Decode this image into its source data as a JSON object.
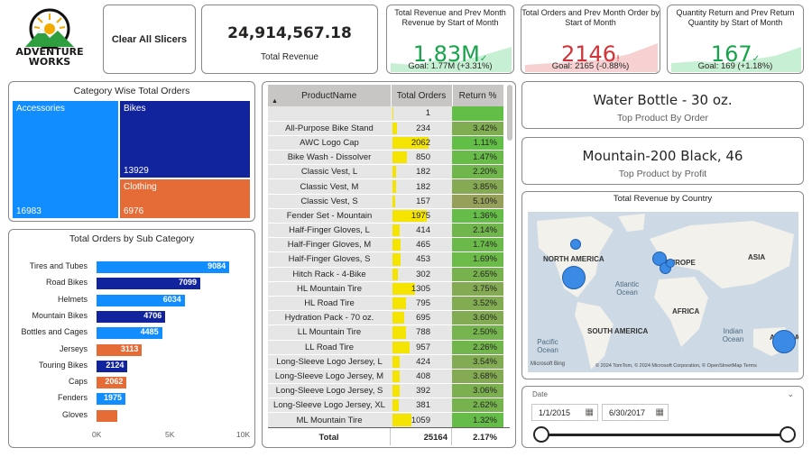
{
  "brand": {
    "logo_line1": "ADVENTURE",
    "logo_line2": "WORKS"
  },
  "clear_button": {
    "label": "Clear All Slicers"
  },
  "total_revenue": {
    "value": "24,914,567.18",
    "label": "Total Revenue"
  },
  "kpis": [
    {
      "title": "Total Revenue and Prev Month Revenue by Start of Month",
      "value": "1.83M",
      "goal": "Goal: 1.77M (+3.31%)",
      "status": "good",
      "color": "#17a34a"
    },
    {
      "title": "Total Orders and Prev Month Order by Start of Month",
      "value": "2146",
      "goal": "Goal: 2165 (-0.88%)",
      "status": "bad",
      "color": "#d13438"
    },
    {
      "title": "Quantity Return and Prev Return Quantity by Start of Month",
      "value": "167",
      "goal": "Goal: 169 (+1.18%)",
      "status": "good",
      "color": "#17a34a"
    }
  ],
  "category_orders": {
    "title": "Category Wise Total Orders",
    "cells": [
      {
        "name": "Accessories",
        "value": "16983",
        "color": "#118dff"
      },
      {
        "name": "Bikes",
        "value": "13929",
        "color": "#12239e"
      },
      {
        "name": "Clothing",
        "value": "6976",
        "color": "#e66c37"
      }
    ]
  },
  "subcategory_orders": {
    "title": "Total Orders by Sub Category",
    "axis_ticks": [
      "0K",
      "5K",
      "10K"
    ],
    "items": [
      {
        "label": "Tires and Tubes",
        "value": 9084,
        "display": "9084",
        "color": "#118dff"
      },
      {
        "label": "Road Bikes",
        "value": 7099,
        "display": "7099",
        "color": "#12239e"
      },
      {
        "label": "Helmets",
        "value": 6034,
        "display": "6034",
        "color": "#118dff"
      },
      {
        "label": "Mountain Bikes",
        "value": 4706,
        "display": "4706",
        "color": "#12239e"
      },
      {
        "label": "Bottles and Cages",
        "value": 4485,
        "display": "4485",
        "color": "#118dff"
      },
      {
        "label": "Jerseys",
        "value": 3113,
        "display": "3113",
        "color": "#e66c37"
      },
      {
        "label": "Touring Bikes",
        "value": 2124,
        "display": "2124",
        "color": "#12239e"
      },
      {
        "label": "Caps",
        "value": 2062,
        "display": "2062",
        "color": "#e66c37"
      },
      {
        "label": "Fenders",
        "value": 1975,
        "display": "1975",
        "color": "#118dff"
      },
      {
        "label": "Gloves",
        "value": 1430,
        "display": "",
        "color": "#e66c37"
      }
    ]
  },
  "product_table": {
    "columns": [
      "ProductName",
      "Total Orders",
      "Return %"
    ],
    "rows": [
      {
        "name": "",
        "orders": "1",
        "ret": "",
        "o": 1,
        "r": 0
      },
      {
        "name": "All-Purpose Bike Stand",
        "orders": "234",
        "ret": "3.42%",
        "o": 234,
        "r": 3.42
      },
      {
        "name": "AWC Logo Cap",
        "orders": "2062",
        "ret": "1.11%",
        "o": 2062,
        "r": 1.11
      },
      {
        "name": "Bike Wash - Dissolver",
        "orders": "850",
        "ret": "1.47%",
        "o": 850,
        "r": 1.47
      },
      {
        "name": "Classic Vest, L",
        "orders": "182",
        "ret": "2.20%",
        "o": 182,
        "r": 2.2
      },
      {
        "name": "Classic Vest, M",
        "orders": "182",
        "ret": "3.85%",
        "o": 182,
        "r": 3.85
      },
      {
        "name": "Classic Vest, S",
        "orders": "157",
        "ret": "5.10%",
        "o": 157,
        "r": 5.1
      },
      {
        "name": "Fender Set - Mountain",
        "orders": "1975",
        "ret": "1.36%",
        "o": 1975,
        "r": 1.36
      },
      {
        "name": "Half-Finger Gloves, L",
        "orders": "414",
        "ret": "2.14%",
        "o": 414,
        "r": 2.14
      },
      {
        "name": "Half-Finger Gloves, M",
        "orders": "465",
        "ret": "1.74%",
        "o": 465,
        "r": 1.74
      },
      {
        "name": "Half-Finger Gloves, S",
        "orders": "453",
        "ret": "1.69%",
        "o": 453,
        "r": 1.69
      },
      {
        "name": "Hitch Rack - 4-Bike",
        "orders": "302",
        "ret": "2.65%",
        "o": 302,
        "r": 2.65
      },
      {
        "name": "HL Mountain Tire",
        "orders": "1305",
        "ret": "3.75%",
        "o": 1305,
        "r": 3.75
      },
      {
        "name": "HL Road Tire",
        "orders": "795",
        "ret": "3.52%",
        "o": 795,
        "r": 3.52
      },
      {
        "name": "Hydration Pack - 70 oz.",
        "orders": "695",
        "ret": "3.60%",
        "o": 695,
        "r": 3.6
      },
      {
        "name": "LL Mountain Tire",
        "orders": "788",
        "ret": "2.50%",
        "o": 788,
        "r": 2.5
      },
      {
        "name": "LL Road Tire",
        "orders": "957",
        "ret": "2.26%",
        "o": 957,
        "r": 2.26
      },
      {
        "name": "Long-Sleeve Logo Jersey, L",
        "orders": "424",
        "ret": "3.54%",
        "o": 424,
        "r": 3.54
      },
      {
        "name": "Long-Sleeve Logo Jersey, M",
        "orders": "408",
        "ret": "3.68%",
        "o": 408,
        "r": 3.68
      },
      {
        "name": "Long-Sleeve Logo Jersey, S",
        "orders": "392",
        "ret": "3.06%",
        "o": 392,
        "r": 3.06
      },
      {
        "name": "Long-Sleeve Logo Jersey, XL",
        "orders": "381",
        "ret": "2.62%",
        "o": 381,
        "r": 2.62
      },
      {
        "name": "ML Mountain Tire",
        "orders": "1059",
        "ret": "1.32%",
        "o": 1059,
        "r": 1.32
      }
    ],
    "total": {
      "label": "Total",
      "orders": "25164",
      "ret": "2.17%"
    }
  },
  "top_product_order": {
    "value": "Water Bottle - 30 oz.",
    "label": "Top Product By Order"
  },
  "top_product_profit": {
    "value": "Mountain-200 Black, 46",
    "label": "Top Product by Profit"
  },
  "map": {
    "title": "Total Revenue by Country",
    "labels": [
      "NORTH AMERICA",
      "EUROPE",
      "ASIA",
      "AFRICA",
      "SOUTH AMERICA",
      "AUSTRA"
    ],
    "oceans": [
      "Atlantic Ocean",
      "Pacific Ocean",
      "Indian Ocean"
    ],
    "credit_left": "Microsoft Bing",
    "credit_right": "© 2024 TomTom, © 2024 Microsoft Corporation, © OpenStreetMap  Terms"
  },
  "date_slicer": {
    "label": "Date",
    "start": "1/1/2015",
    "end": "6/30/2017"
  }
}
